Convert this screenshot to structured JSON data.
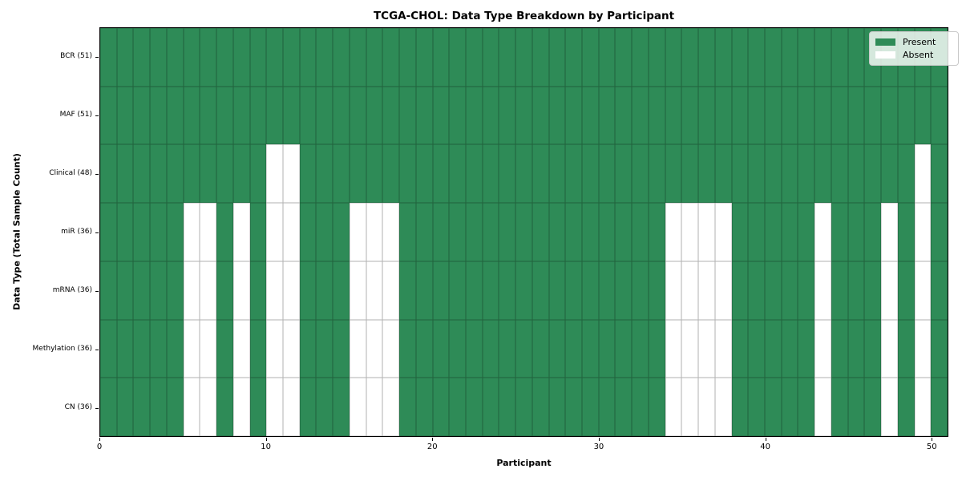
{
  "chart_data": {
    "type": "heatmap",
    "title": "TCGA-CHOL: Data Type Breakdown by Participant",
    "xlabel": "Participant",
    "ylabel": "Data Type (Total Sample Count)",
    "x_ticks": [
      0,
      10,
      20,
      30,
      40,
      50
    ],
    "x_range": [
      0,
      51
    ],
    "n_participants": 51,
    "grid": true,
    "legend": {
      "position": "upper-right",
      "entries": [
        {
          "label": "Present",
          "color": "#2e8b57"
        },
        {
          "label": "Absent",
          "color": "#ffffff"
        }
      ]
    },
    "colors": {
      "present": "#2e8b57",
      "absent": "#ffffff",
      "gridline": "rgba(0,0,0,0.3)"
    },
    "rows": [
      {
        "label": "BCR (51)",
        "data_type": "BCR",
        "total_samples": 51,
        "absent_participants": []
      },
      {
        "label": "MAF (51)",
        "data_type": "MAF",
        "total_samples": 51,
        "absent_participants": []
      },
      {
        "label": "Clinical (48)",
        "data_type": "Clinical",
        "total_samples": 48,
        "absent_participants": [
          10,
          11,
          49
        ]
      },
      {
        "label": "miR (36)",
        "data_type": "miR",
        "total_samples": 36,
        "absent_participants": [
          5,
          6,
          8,
          10,
          11,
          15,
          16,
          17,
          34,
          35,
          36,
          37,
          43,
          47,
          49
        ]
      },
      {
        "label": "mRNA (36)",
        "data_type": "mRNA",
        "total_samples": 36,
        "absent_participants": [
          5,
          6,
          8,
          10,
          11,
          15,
          16,
          17,
          34,
          35,
          36,
          37,
          43,
          47,
          49
        ]
      },
      {
        "label": "Methylation (36)",
        "data_type": "Methylation",
        "total_samples": 36,
        "absent_participants": [
          5,
          6,
          8,
          10,
          11,
          15,
          16,
          17,
          34,
          35,
          36,
          37,
          43,
          47,
          49
        ]
      },
      {
        "label": "CN (36)",
        "data_type": "CN",
        "total_samples": 36,
        "absent_participants": [
          5,
          6,
          8,
          10,
          11,
          15,
          16,
          17,
          34,
          35,
          36,
          37,
          43,
          47,
          49
        ]
      }
    ]
  }
}
